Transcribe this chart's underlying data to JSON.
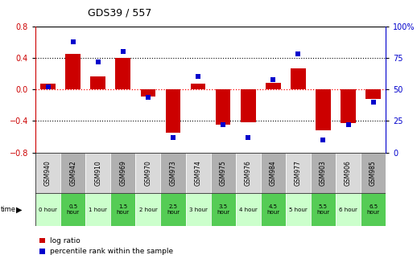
{
  "title": "GDS39 / 557",
  "samples": [
    "GSM940",
    "GSM942",
    "GSM910",
    "GSM969",
    "GSM970",
    "GSM973",
    "GSM974",
    "GSM975",
    "GSM976",
    "GSM984",
    "GSM977",
    "GSM903",
    "GSM906",
    "GSM985"
  ],
  "time_labels": [
    "0 hour",
    "0.5\nhour",
    "1 hour",
    "1.5\nhour",
    "2 hour",
    "2.5\nhour",
    "3 hour",
    "3.5\nhour",
    "4 hour",
    "4.5\nhour",
    "5 hour",
    "5.5\nhour",
    "6 hour",
    "6.5\nhour"
  ],
  "log_ratio": [
    0.07,
    0.45,
    0.17,
    0.4,
    -0.09,
    -0.55,
    0.07,
    -0.45,
    -0.42,
    0.08,
    0.27,
    -0.52,
    -0.43,
    -0.12
  ],
  "percentile": [
    52,
    88,
    72,
    80,
    44,
    12,
    60,
    22,
    12,
    58,
    78,
    10,
    22,
    40
  ],
  "bar_color": "#cc0000",
  "dot_color": "#0000cc",
  "bg_chart": "#ffffff",
  "bg_gsm_light": "#d9d9d9",
  "bg_gsm_dark": "#b0b0b0",
  "bg_time_light": "#ccffcc",
  "bg_time_dark": "#55cc55",
  "ylim_left": [
    -0.8,
    0.8
  ],
  "ylim_right": [
    0,
    100
  ],
  "yticks_left": [
    -0.8,
    -0.4,
    0.0,
    0.4,
    0.8
  ],
  "yticks_right": [
    0,
    25,
    50,
    75,
    100
  ],
  "hlines_black": [
    -0.4,
    0.4
  ],
  "hline_red": 0.0
}
